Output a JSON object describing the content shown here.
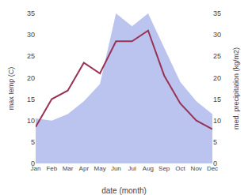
{
  "chart_data": {
    "type": "line",
    "categories": [
      "Jan",
      "Feb",
      "Mar",
      "Apr",
      "May",
      "Jun",
      "Jul",
      "Aug",
      "Sep",
      "Oct",
      "Nov",
      "Dec"
    ],
    "series": [
      {
        "type": "area",
        "color": "#bbc4ef",
        "axis": "y2",
        "values": [
          10.5,
          10.0,
          11.5,
          14.5,
          18.5,
          35.0,
          32.0,
          35.0,
          27.0,
          19.0,
          14.5,
          11.5
        ]
      },
      {
        "type": "line",
        "color": "#993355",
        "values": [
          8.5,
          15.0,
          17.0,
          23.5,
          21.0,
          28.5,
          28.5,
          31.0,
          20.5,
          14.0,
          10.0,
          8.0
        ]
      }
    ],
    "xlabel": "date (month)",
    "ylabel": "max temp (C)",
    "y2label": "med. precipitation (kg/m2)",
    "ylim": [
      0,
      35
    ],
    "yticks": [
      0,
      5,
      10,
      15,
      20,
      25,
      30,
      35
    ],
    "y2lim": [
      0,
      35
    ],
    "y2ticks": [
      0,
      5,
      10,
      15,
      20,
      25,
      30,
      35
    ],
    "grid": false
  }
}
